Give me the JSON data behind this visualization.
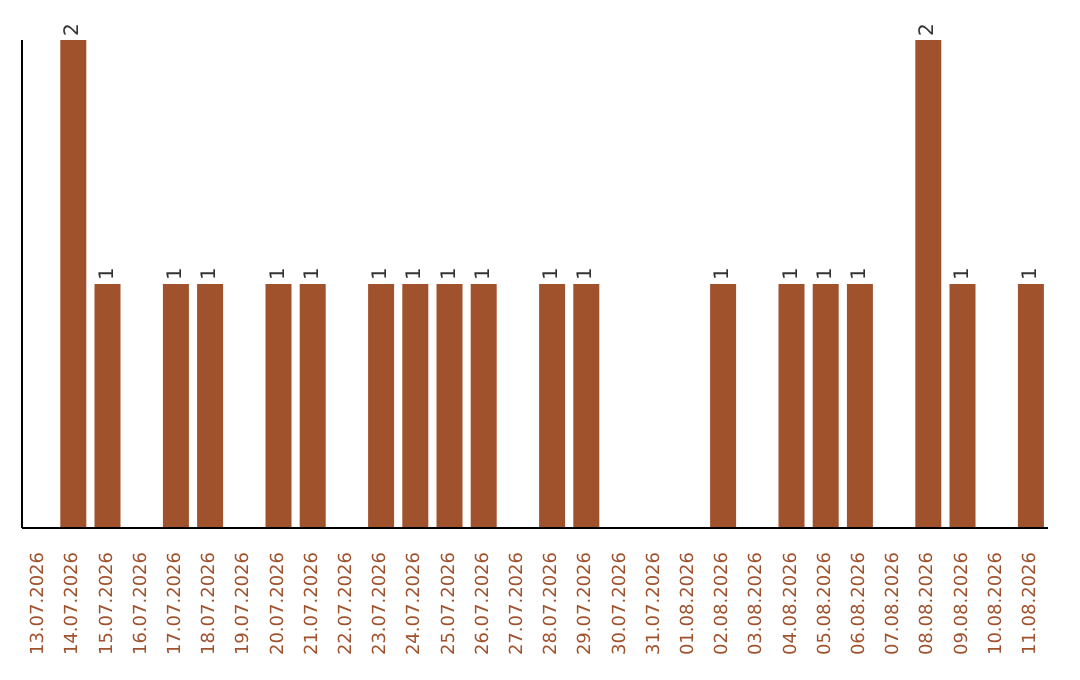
{
  "chart_data": {
    "type": "bar",
    "categories": [
      "13.07.2026",
      "14.07.2026",
      "15.07.2026",
      "16.07.2026",
      "17.07.2026",
      "18.07.2026",
      "19.07.2026",
      "20.07.2026",
      "21.07.2026",
      "22.07.2026",
      "23.07.2026",
      "24.07.2026",
      "25.07.2026",
      "26.07.2026",
      "27.07.2026",
      "28.07.2026",
      "29.07.2026",
      "30.07.2026",
      "31.07.2026",
      "01.08.2026",
      "02.08.2026",
      "03.08.2026",
      "04.08.2026",
      "05.08.2026",
      "06.08.2026",
      "07.08.2026",
      "08.08.2026",
      "09.08.2026",
      "10.08.2026",
      "11.08.2026"
    ],
    "values": [
      null,
      2,
      1,
      null,
      1,
      1,
      null,
      1,
      1,
      null,
      1,
      1,
      1,
      1,
      null,
      1,
      1,
      null,
      null,
      null,
      1,
      null,
      1,
      1,
      1,
      null,
      2,
      1,
      null,
      1
    ],
    "color": "#a0522d",
    "data_labels": true,
    "tick_labels": "x",
    "grid": false,
    "legend": false
  }
}
